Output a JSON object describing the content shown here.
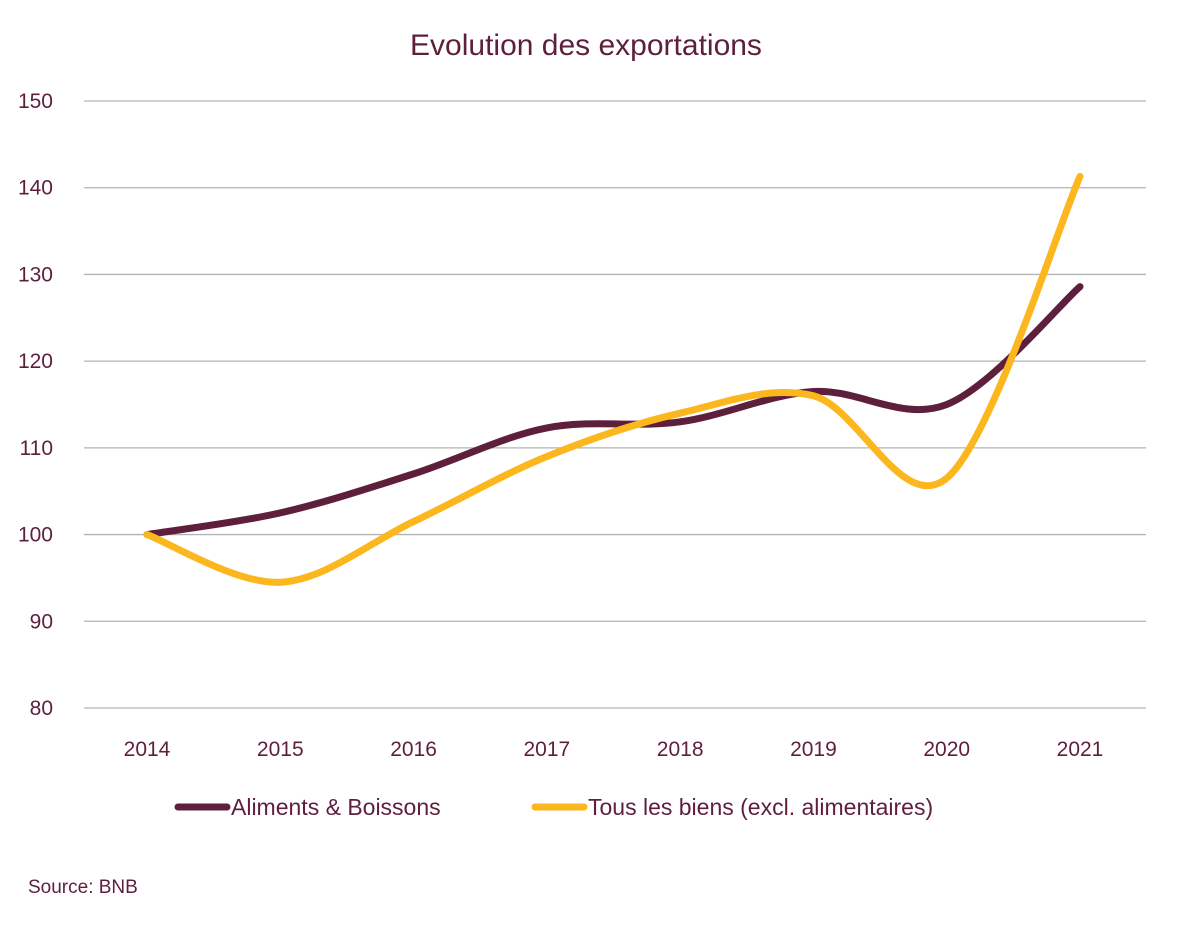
{
  "chart_data": {
    "type": "line",
    "title": "Evolution des exportations",
    "xlabel": "",
    "ylabel": "",
    "x": [
      "2014",
      "2015",
      "2016",
      "2017",
      "2018",
      "2019",
      "2020",
      "2021"
    ],
    "ylim": [
      80,
      150
    ],
    "yticks": [
      80,
      90,
      100,
      110,
      120,
      130,
      140,
      150
    ],
    "grid": true,
    "smooth": true,
    "legend_position": "bottom",
    "series": [
      {
        "name": "Aliments & Boissons",
        "color": "#5e1f3d",
        "values": [
          100,
          102.5,
          107,
          112.3,
          113,
          116.5,
          115,
          128.6
        ]
      },
      {
        "name": "Tous les biens (excl. alimentaires)",
        "color": "#fdb71e",
        "values": [
          100,
          94.5,
          101.5,
          109,
          114,
          116,
          106.5,
          141.3
        ]
      }
    ],
    "source": "Source: BNB"
  }
}
